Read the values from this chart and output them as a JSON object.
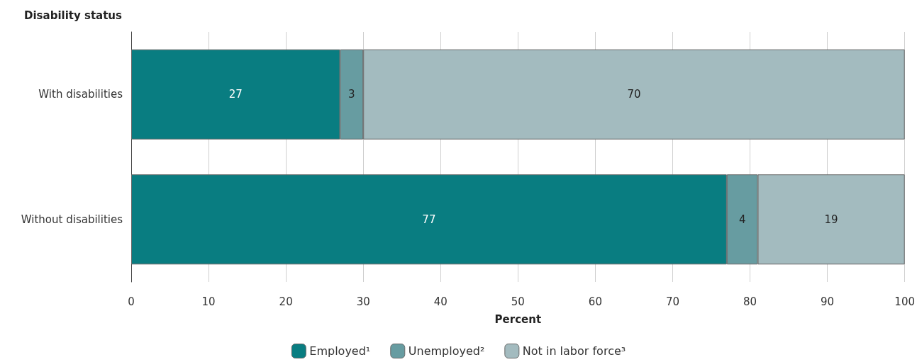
{
  "chart_data": {
    "type": "bar",
    "orientation": "horizontal",
    "stacked": true,
    "ylabel": "Disability status",
    "xlabel": "Percent",
    "categories": [
      "With disabilities",
      "Without disabilities"
    ],
    "series": [
      {
        "name": "Employed¹",
        "color": "#097d81",
        "values": [
          27,
          77
        ]
      },
      {
        "name": "Unemployed²",
        "color": "#679ca1",
        "values": [
          3,
          4
        ]
      },
      {
        "name": "Not in labor force³",
        "color": "#a3bbbf",
        "values": [
          70,
          19
        ]
      }
    ],
    "xlim": [
      0,
      100
    ],
    "xticks": [
      0,
      10,
      20,
      30,
      40,
      50,
      60,
      70,
      80,
      90,
      100
    ],
    "grid": "x",
    "legend": "bottom",
    "data_labels": true
  }
}
